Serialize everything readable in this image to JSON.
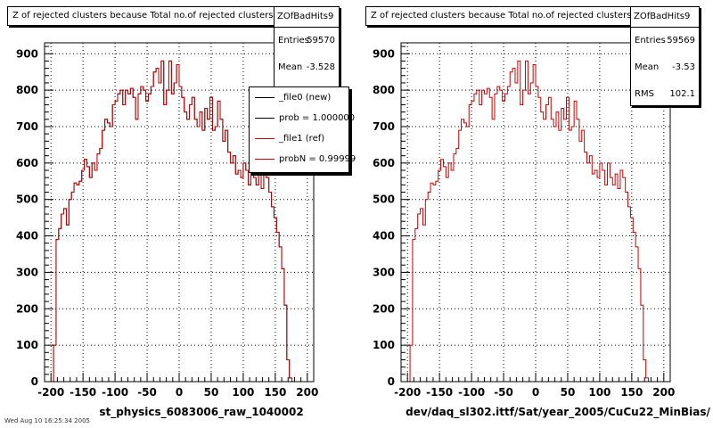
{
  "colors": {
    "new": "#000000",
    "ref": "#cc0000",
    "grid": "#000000"
  },
  "panels": [
    {
      "title": "Z of rejected clusters  because Total no.of rejected clusters",
      "stats": {
        "name": "ZOfBadHits9",
        "entries_label": "Entries",
        "entries": "59570",
        "mean_label": "Mean",
        "mean": "-3.528"
      },
      "legend": [
        {
          "text": "_file0 (new)"
        },
        {
          "text": "prob = 1.000000"
        },
        {
          "text": "_file1 (ref)"
        },
        {
          "text": "probN = 0.99999"
        }
      ],
      "xlabel": "st_physics_6083006_raw_1040002"
    },
    {
      "title": "Z of rejected clusters  because Total no.of rejected clusters",
      "stats": {
        "name": "ZOfBadHits9",
        "entries_label": "Entries",
        "entries": "59569",
        "mean_label": "Mean",
        "mean": "-3.53",
        "rms_label": "RMS",
        "rms": "102.1"
      },
      "xlabel": "dev/daq_sl302.ittf/Sat/year_2005/CuCu22_MinBias/"
    }
  ],
  "footer": "Wed Aug 10 16:25:34 2005",
  "chart_data": [
    {
      "type": "histogram",
      "title": "Z of rejected clusters  because Total no.of rejected clusters",
      "xlabel": "st_physics_6083006_raw_1040002",
      "xlim": [
        -210,
        210
      ],
      "ylim": [
        0,
        930
      ],
      "xticks": [
        -200,
        -150,
        -100,
        -50,
        0,
        50,
        100,
        150,
        200
      ],
      "yticks": [
        0,
        100,
        200,
        300,
        400,
        500,
        600,
        700,
        800,
        900
      ],
      "grid": true,
      "bin_start": -200,
      "bin_width": 4,
      "series": [
        {
          "name": "_file0 (new)",
          "values": [
            0,
            100,
            390,
            420,
            460,
            475,
            430,
            500,
            520,
            545,
            540,
            550,
            580,
            610,
            590,
            560,
            600,
            580,
            625,
            640,
            690,
            720,
            710,
            700,
            760,
            770,
            790,
            800,
            760,
            800,
            790,
            805,
            780,
            720,
            790,
            810,
            800,
            770,
            790,
            810,
            850,
            860,
            820,
            880,
            760,
            800,
            880,
            790,
            820,
            870,
            810,
            780,
            740,
            720,
            760,
            780,
            720,
            700,
            740,
            690,
            750,
            720,
            780,
            690,
            700,
            770,
            720,
            660,
            690,
            630,
            600,
            620,
            570,
            580,
            560,
            600,
            580,
            540,
            600,
            560,
            540,
            570,
            530,
            580,
            560,
            520,
            480,
            450,
            410,
            370,
            310,
            210,
            60,
            10,
            0,
            0,
            0,
            0,
            0,
            0
          ]
        },
        {
          "name": "_file1 (ref)",
          "values": [
            0,
            100,
            390,
            420,
            460,
            475,
            430,
            500,
            520,
            545,
            540,
            550,
            580,
            610,
            590,
            560,
            600,
            580,
            625,
            640,
            690,
            720,
            710,
            700,
            760,
            770,
            790,
            800,
            760,
            800,
            790,
            805,
            780,
            720,
            790,
            810,
            800,
            770,
            790,
            810,
            850,
            860,
            820,
            880,
            760,
            800,
            880,
            790,
            820,
            870,
            810,
            780,
            740,
            720,
            760,
            780,
            720,
            700,
            740,
            690,
            750,
            720,
            780,
            690,
            700,
            770,
            720,
            660,
            690,
            630,
            600,
            620,
            570,
            580,
            560,
            600,
            580,
            540,
            600,
            560,
            540,
            570,
            530,
            580,
            560,
            520,
            480,
            450,
            410,
            370,
            310,
            210,
            60,
            10,
            0,
            0,
            0,
            0,
            0,
            0
          ]
        }
      ]
    },
    {
      "type": "histogram",
      "title": "Z of rejected clusters  because Total no.of rejected clusters",
      "xlabel": "dev/daq_sl302.ittf/Sat/year_2005/CuCu22_MinBias/",
      "xlim": [
        -210,
        210
      ],
      "ylim": [
        0,
        930
      ],
      "xticks": [
        -200,
        -150,
        -100,
        -50,
        0,
        50,
        100,
        150,
        200
      ],
      "yticks": [
        0,
        100,
        200,
        300,
        400,
        500,
        600,
        700,
        800,
        900
      ],
      "grid": true,
      "bin_start": -200,
      "bin_width": 4,
      "series": [
        {
          "name": "ZOfBadHits9",
          "values": [
            0,
            100,
            390,
            420,
            460,
            475,
            430,
            500,
            520,
            545,
            540,
            550,
            580,
            610,
            590,
            560,
            600,
            580,
            625,
            640,
            690,
            720,
            710,
            700,
            760,
            770,
            790,
            800,
            760,
            800,
            790,
            805,
            780,
            720,
            790,
            810,
            800,
            770,
            790,
            810,
            850,
            860,
            820,
            880,
            760,
            800,
            880,
            790,
            820,
            870,
            810,
            780,
            740,
            720,
            760,
            780,
            720,
            700,
            740,
            690,
            750,
            720,
            780,
            690,
            700,
            770,
            720,
            660,
            690,
            630,
            600,
            620,
            570,
            580,
            560,
            600,
            580,
            540,
            600,
            560,
            540,
            570,
            530,
            580,
            560,
            520,
            480,
            450,
            410,
            370,
            310,
            210,
            60,
            10,
            0,
            0,
            0,
            0,
            0,
            0
          ]
        }
      ]
    }
  ]
}
